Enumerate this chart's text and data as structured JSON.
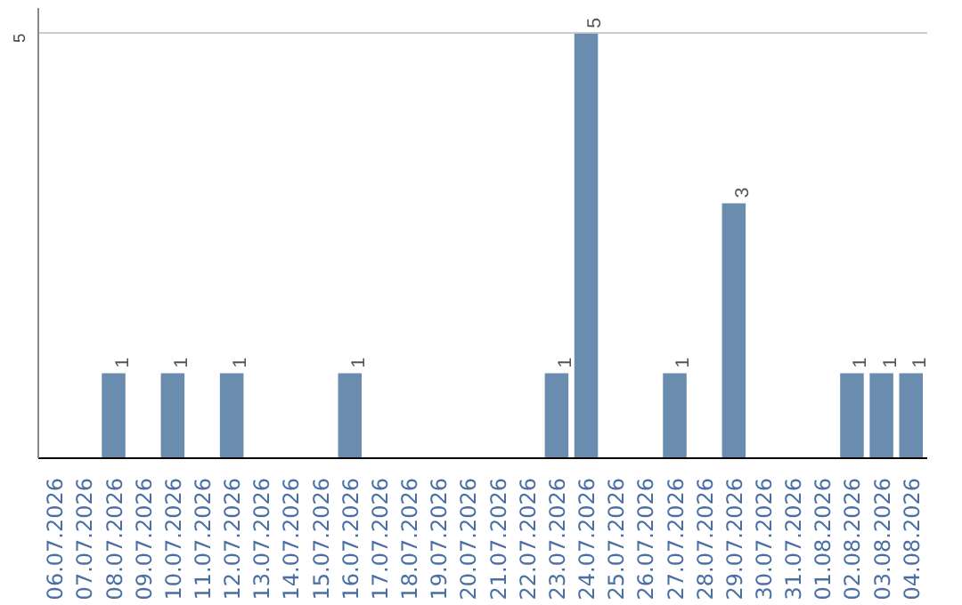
{
  "chart_data": {
    "type": "bar",
    "categories": [
      "06.07.2026",
      "07.07.2026",
      "08.07.2026",
      "09.07.2026",
      "10.07.2026",
      "11.07.2026",
      "12.07.2026",
      "13.07.2026",
      "14.07.2026",
      "15.07.2026",
      "16.07.2026",
      "17.07.2026",
      "18.07.2026",
      "19.07.2026",
      "20.07.2026",
      "21.07.2026",
      "22.07.2026",
      "23.07.2026",
      "24.07.2026",
      "25.07.2026",
      "26.07.2026",
      "27.07.2026",
      "28.07.2026",
      "29.07.2026",
      "30.07.2026",
      "31.07.2026",
      "01.08.2026",
      "02.08.2026",
      "03.08.2026",
      "04.08.2026"
    ],
    "values": [
      0,
      0,
      1,
      0,
      1,
      0,
      1,
      0,
      0,
      0,
      1,
      0,
      0,
      0,
      0,
      0,
      0,
      1,
      5,
      0,
      0,
      1,
      0,
      3,
      0,
      0,
      0,
      1,
      1,
      1
    ],
    "value_labels": [
      null,
      null,
      "1",
      null,
      "1",
      null,
      "1",
      null,
      null,
      null,
      "1",
      null,
      null,
      null,
      null,
      null,
      null,
      "1",
      "5",
      null,
      null,
      "1",
      null,
      "3",
      null,
      null,
      null,
      "1",
      "1",
      "1"
    ],
    "color": "#6a8caf",
    "ylim": [
      0,
      5.3
    ],
    "yticks": [
      5
    ],
    "grid": "y"
  }
}
